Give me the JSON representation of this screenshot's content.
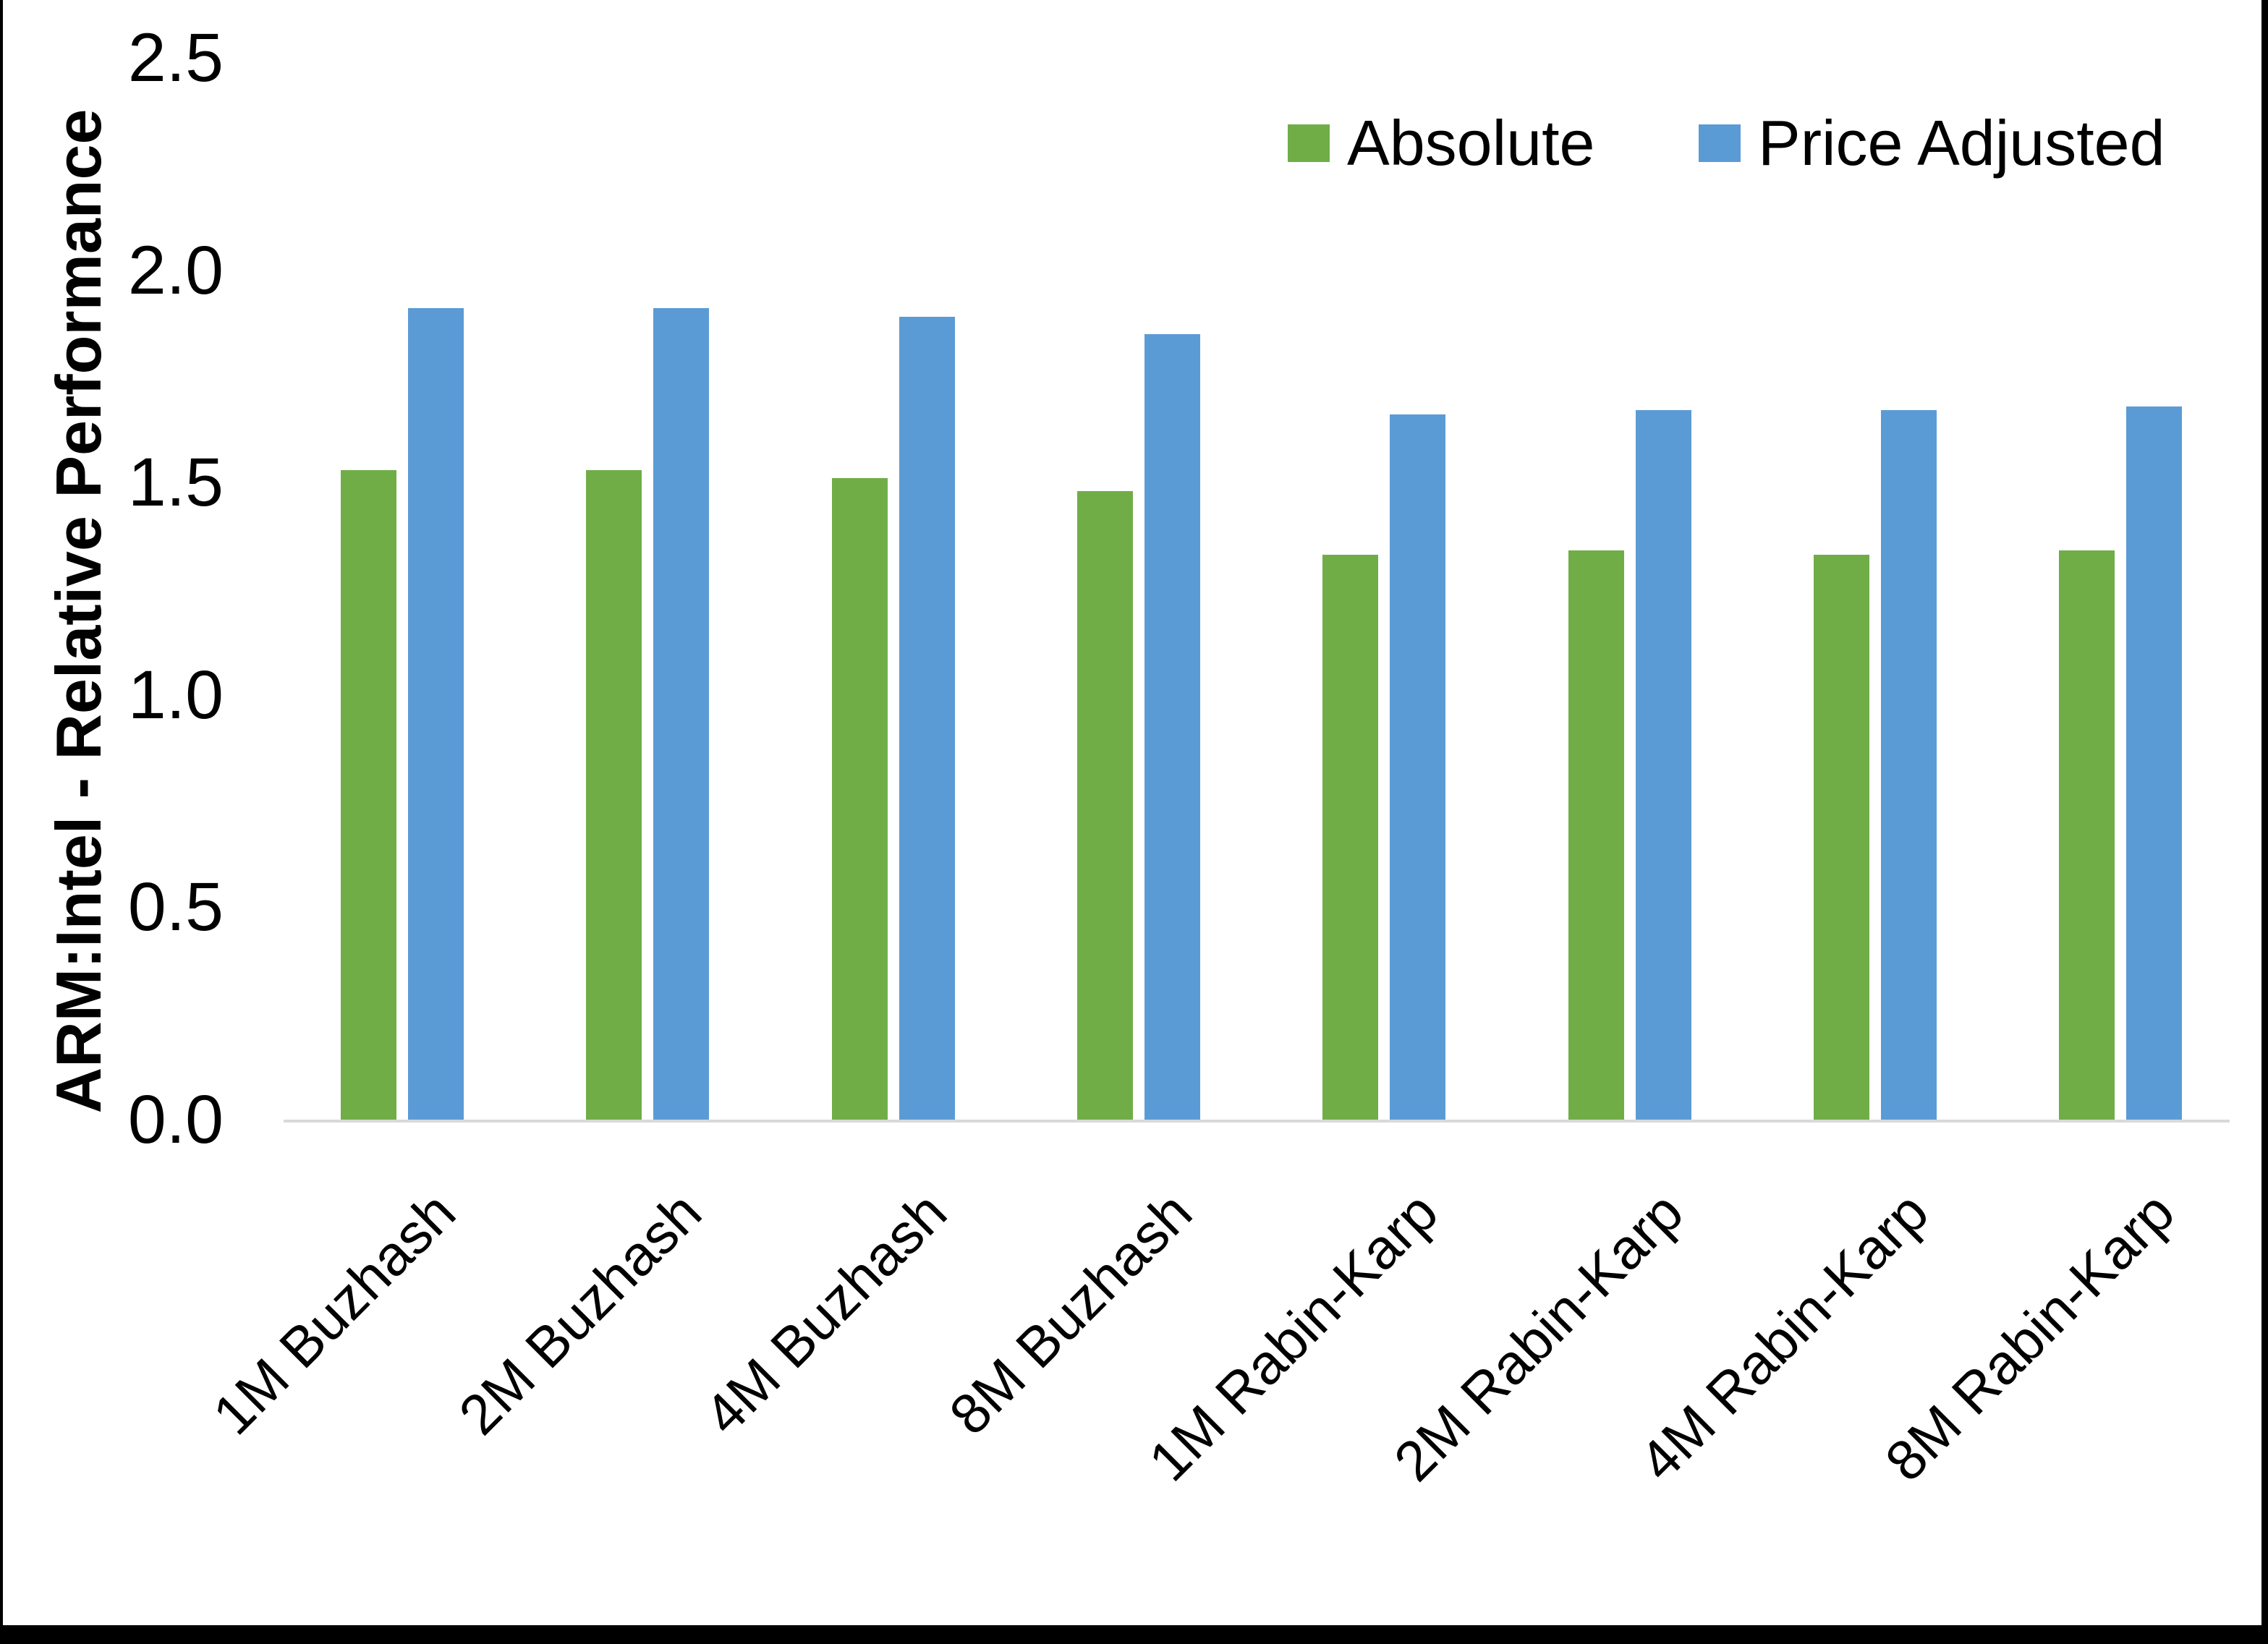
{
  "chart_data": {
    "type": "bar",
    "title": "",
    "xlabel": "",
    "ylabel": "ARM:Intel - Relative Performance",
    "ylim": [
      0,
      2.5
    ],
    "ytick_step": 0.5,
    "grid": false,
    "legend_position": "top-right",
    "categories": [
      "1M Buzhash",
      "2M Buzhash",
      "4M Buzhash",
      "8M Buzhash",
      "1M Rabin-Karp",
      "2M Rabin-Karp",
      "4M Rabin-Karp",
      "8M Rabin-Karp"
    ],
    "series": [
      {
        "name": "Absolute",
        "color": "#70AD47",
        "values": [
          1.53,
          1.53,
          1.51,
          1.48,
          1.33,
          1.34,
          1.33,
          1.34
        ]
      },
      {
        "name": "Price Adjusted",
        "color": "#5B9BD5",
        "values": [
          1.91,
          1.91,
          1.89,
          1.85,
          1.66,
          1.67,
          1.67,
          1.68
        ]
      }
    ],
    "colors": {
      "axis_line": "#d9d9d9",
      "text": "#000000",
      "frame_border": "#000000"
    }
  }
}
